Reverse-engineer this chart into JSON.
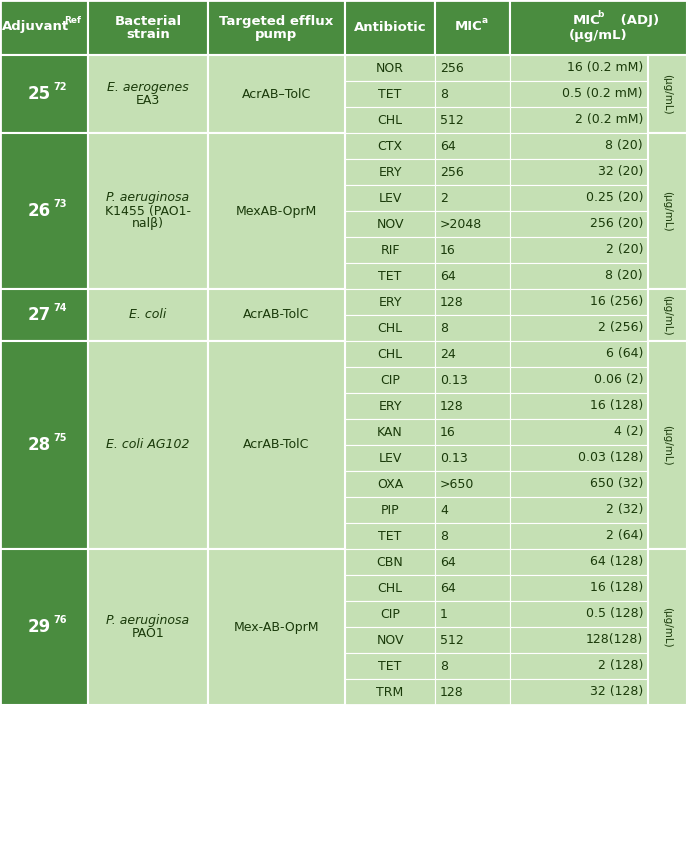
{
  "dark_green": "#4a8c3f",
  "light_green": "#c5e0b4",
  "white": "#ffffff",
  "dark_text": "#1a3a0a",
  "rows": [
    {
      "adjuvant": "25",
      "adjuvant_sup": "72",
      "strain_lines": [
        "E. aerogenes",
        "EA3"
      ],
      "strain_italic": [
        true,
        false
      ],
      "pump": "AcrAB–TolC",
      "antibiotics": [
        "NOR",
        "TET",
        "CHL"
      ],
      "mic_a": [
        "256",
        "8",
        "512"
      ],
      "mic_b": [
        "16 (0.2 mM)",
        "0.5 (0.2 mM)",
        "2 (0.2 mM)"
      ],
      "unit_note": "(μg/mL)"
    },
    {
      "adjuvant": "26",
      "adjuvant_sup": "73",
      "strain_lines": [
        "P. aeruginosa",
        "K1455 (PAO1-",
        "nalβ)"
      ],
      "strain_italic": [
        true,
        false,
        false
      ],
      "pump": "MexAB-OprM",
      "antibiotics": [
        "CTX",
        "ERY",
        "LEV",
        "NOV",
        "RIF",
        "TET"
      ],
      "mic_a": [
        "64",
        "256",
        "2",
        ">2048",
        "16",
        "64"
      ],
      "mic_b": [
        "8 (20)",
        "32 (20)",
        "0.25 (20)",
        "256 (20)",
        "2 (20)",
        "8 (20)"
      ],
      "unit_note": "(μg/mL)"
    },
    {
      "adjuvant": "27",
      "adjuvant_sup": "74",
      "strain_lines": [
        "E. coli"
      ],
      "strain_italic": [
        true
      ],
      "pump": "AcrAB-TolC",
      "antibiotics": [
        "ERY",
        "CHL"
      ],
      "mic_a": [
        "128",
        "8"
      ],
      "mic_b": [
        "16 (256)",
        "2 (256)"
      ],
      "unit_note": "(μg/mL)"
    },
    {
      "adjuvant": "28",
      "adjuvant_sup": "75",
      "strain_lines": [
        "E. coli AG102"
      ],
      "strain_italic": [
        true
      ],
      "pump": "AcrAB-TolC",
      "antibiotics": [
        "CHL",
        "CIP",
        "ERY",
        "KAN",
        "LEV",
        "OXA",
        "PIP",
        "TET"
      ],
      "mic_a": [
        "24",
        "0.13",
        "128",
        "16",
        "0.13",
        ">650",
        "4",
        "8"
      ],
      "mic_b": [
        "6 (64)",
        "0.06 (2)",
        "16 (128)",
        "4 (2)",
        "0.03 (128)",
        "650 (32)",
        "2 (32)",
        "2 (64)"
      ],
      "unit_note": "(μg/mL)"
    },
    {
      "adjuvant": "29",
      "adjuvant_sup": "76",
      "strain_lines": [
        "P. aeruginosa",
        "PAO1"
      ],
      "strain_italic": [
        true,
        false
      ],
      "pump": "Mex-AB-OprM",
      "antibiotics": [
        "CBN",
        "CHL",
        "CIP",
        "NOV",
        "TET",
        "TRM"
      ],
      "mic_a": [
        "64",
        "64",
        "1",
        "512",
        "8",
        "128"
      ],
      "mic_b": [
        "64 (128)",
        "16 (128)",
        "0.5 (128)",
        "128(128)",
        "2 (128)",
        "32 (128)"
      ],
      "unit_note": "(μg/mL)"
    }
  ]
}
